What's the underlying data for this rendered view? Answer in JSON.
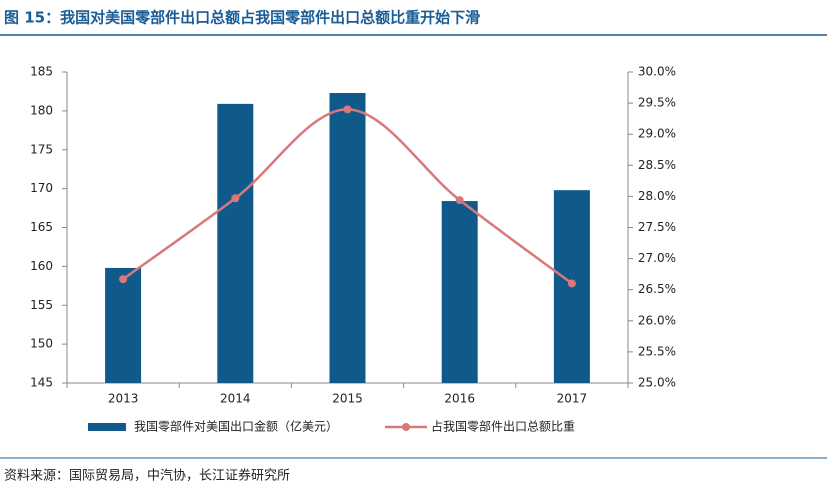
{
  "chart_data": {
    "type": "bar-line",
    "title": "图 15：我国对美国零部件出口总额占我国零部件出口总额比重开始下滑",
    "categories": [
      "2013",
      "2014",
      "2015",
      "2016",
      "2017"
    ],
    "series": [
      {
        "name": "我国零部件对美国出口金额（亿美元）",
        "type": "bar",
        "color": "#0f5a8b",
        "values": [
          159.8,
          180.9,
          182.3,
          168.4,
          169.8
        ]
      },
      {
        "name": "占我国零部件出口总额比重",
        "type": "line",
        "axis": "y2",
        "color": "#d9787b",
        "values": [
          26.67,
          27.97,
          29.4,
          27.94,
          26.6
        ]
      }
    ],
    "ylim": [
      145,
      185
    ],
    "yticks": [
      145,
      150,
      155,
      160,
      165,
      170,
      175,
      180,
      185
    ],
    "y2lim": [
      25,
      30
    ],
    "y2ticks": [
      {
        "value": 25,
        "label": "25.0%"
      },
      {
        "value": 25.5,
        "label": "25.5%"
      },
      {
        "value": 26,
        "label": "26.0%"
      },
      {
        "value": 26.5,
        "label": "26.5%"
      },
      {
        "value": 27,
        "label": "27.0%"
      },
      {
        "value": 27.5,
        "label": "27.5%"
      },
      {
        "value": 28,
        "label": "28.0%"
      },
      {
        "value": 28.5,
        "label": "28.5%"
      },
      {
        "value": 29,
        "label": "29.0%"
      },
      {
        "value": 29.5,
        "label": "29.5%"
      },
      {
        "value": 30,
        "label": "30.0%"
      }
    ],
    "grid": false,
    "legend": "bottom",
    "source": "资料来源：国际贸易局，中汽协，长江证券研究所"
  }
}
